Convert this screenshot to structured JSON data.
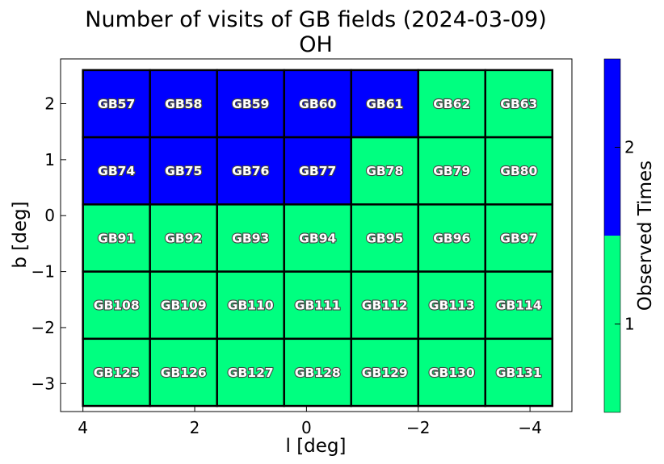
{
  "chart_data": {
    "type": "heatmap",
    "title": "Number of visits of GB fields (2024-03-09)",
    "subtitle": "OH",
    "xlabel": "l [deg]",
    "ylabel": "b [deg]",
    "xlim": [
      4.4,
      -4.75
    ],
    "ylim": [
      -3.5,
      2.8
    ],
    "x_inverted": true,
    "x_ticks": [
      4,
      2,
      0,
      -2,
      -4
    ],
    "x_tick_labels": [
      "4",
      "2",
      "0",
      "−2",
      "−4"
    ],
    "y_ticks": [
      2,
      1,
      0,
      -1,
      -2,
      -3
    ],
    "y_tick_labels": [
      "2",
      "1",
      "0",
      "−1",
      "−2",
      "−3"
    ],
    "grid": false,
    "field_columns_l": [
      4.0,
      2.8,
      1.6,
      0.4,
      -0.8,
      -2.0,
      -3.2,
      -4.4
    ],
    "field_rows_b": [
      2.6,
      1.4,
      0.2,
      -1.0,
      -2.2,
      -3.4
    ],
    "fields": [
      [
        {
          "name": "GB57",
          "visits": 2
        },
        {
          "name": "GB58",
          "visits": 2
        },
        {
          "name": "GB59",
          "visits": 2
        },
        {
          "name": "GB60",
          "visits": 2
        },
        {
          "name": "GB61",
          "visits": 2
        },
        {
          "name": "GB62",
          "visits": 1
        },
        {
          "name": "GB63",
          "visits": 1
        }
      ],
      [
        {
          "name": "GB74",
          "visits": 2
        },
        {
          "name": "GB75",
          "visits": 2
        },
        {
          "name": "GB76",
          "visits": 2
        },
        {
          "name": "GB77",
          "visits": 2
        },
        {
          "name": "GB78",
          "visits": 1
        },
        {
          "name": "GB79",
          "visits": 1
        },
        {
          "name": "GB80",
          "visits": 1
        }
      ],
      [
        {
          "name": "GB91",
          "visits": 1
        },
        {
          "name": "GB92",
          "visits": 1
        },
        {
          "name": "GB93",
          "visits": 1
        },
        {
          "name": "GB94",
          "visits": 1
        },
        {
          "name": "GB95",
          "visits": 1
        },
        {
          "name": "GB96",
          "visits": 1
        },
        {
          "name": "GB97",
          "visits": 1
        }
      ],
      [
        {
          "name": "GB108",
          "visits": 1
        },
        {
          "name": "GB109",
          "visits": 1
        },
        {
          "name": "GB110",
          "visits": 1
        },
        {
          "name": "GB111",
          "visits": 1
        },
        {
          "name": "GB112",
          "visits": 1
        },
        {
          "name": "GB113",
          "visits": 1
        },
        {
          "name": "GB114",
          "visits": 1
        }
      ],
      [
        {
          "name": "GB125",
          "visits": 1
        },
        {
          "name": "GB126",
          "visits": 1
        },
        {
          "name": "GB127",
          "visits": 1
        },
        {
          "name": "GB128",
          "visits": 1
        },
        {
          "name": "GB129",
          "visits": 1
        },
        {
          "name": "GB130",
          "visits": 1
        },
        {
          "name": "GB131",
          "visits": 1
        }
      ]
    ],
    "colorbar": {
      "label": "Observed Times",
      "levels": [
        1,
        2
      ],
      "level_labels": [
        "1",
        "2"
      ],
      "colors": [
        "#00ff80",
        "#0000ff"
      ],
      "range": [
        0.5,
        2.5
      ]
    }
  }
}
